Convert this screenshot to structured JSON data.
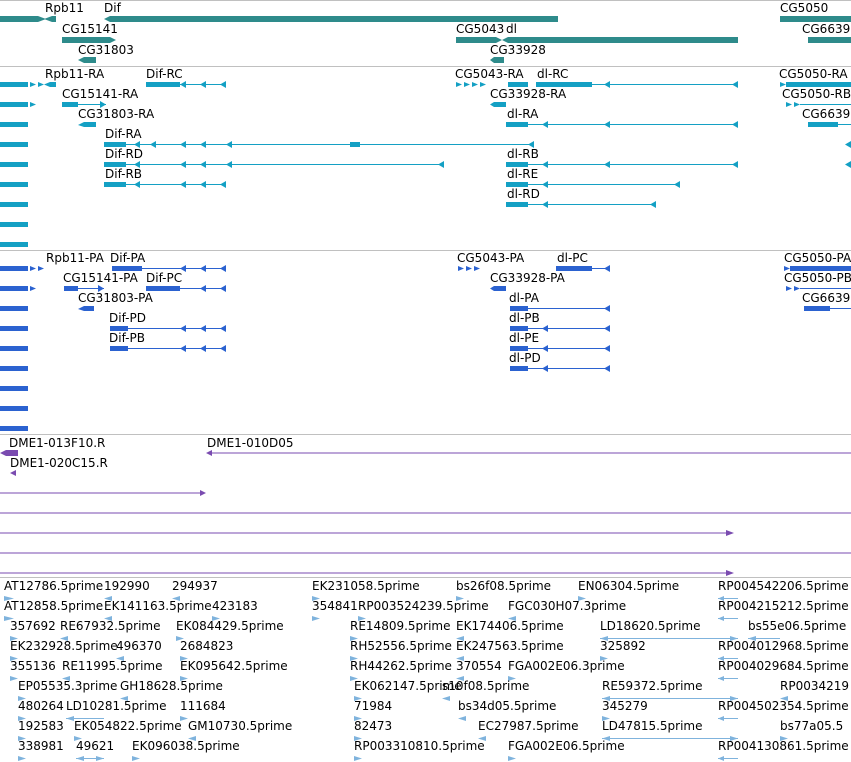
{
  "colors": {
    "gene": "#2e8b8b",
    "rna": "#14a0c4",
    "cds": "#2b62d0",
    "oligo": "#7a4bb0",
    "est": "#7fb3dd",
    "divider": "#c0c0c0",
    "text": "#000000"
  },
  "icons": {
    "arrow_right": "arrow-right-icon",
    "arrow_left": "arrow-left-icon"
  },
  "gene_track": {
    "labels": [
      "Rpb11",
      "Dif",
      "CG15141",
      "CG31803",
      "CG5043",
      "dl",
      "CG33928",
      "CG5050",
      "CG6639"
    ]
  },
  "rna_track": {
    "labels": [
      "Rpb11-RA",
      "Dif-RC",
      "CG15141-RA",
      "CG31803-RA",
      "Dif-RA",
      "Dif-RD",
      "Dif-RB",
      "CG5043-RA",
      "dl-RC",
      "CG33928-RA",
      "dl-RA",
      "dl-RB",
      "dl-RE",
      "dl-RD",
      "CG5050-RA",
      "CG5050-RB",
      "CG6639"
    ]
  },
  "cds_track": {
    "labels": [
      "Rpb11-PA",
      "Dif-PA",
      "CG15141-PA",
      "Dif-PC",
      "CG31803-PA",
      "Dif-PD",
      "Dif-PB",
      "CG5043-PA",
      "dl-PC",
      "CG33928-PA",
      "dl-PA",
      "dl-PB",
      "dl-PE",
      "dl-PD",
      "CG5050-PA",
      "CG5050-PB",
      "CG6639"
    ]
  },
  "oligo_track": {
    "labels": [
      "DME1-013F10.R",
      "DME1-010D05",
      "DME1-020C15.R"
    ]
  },
  "est_track": {
    "labels": [
      "AT12786.5prime",
      "192990",
      "294937",
      "EK231058.5prime",
      "bs26f08.5prime",
      "EN06304.5prime",
      "RP004542206.5prime",
      "AT12858.5prime",
      "EK141163.5prime",
      "423183",
      "354841",
      "RP003524239.5prime",
      "FGC030H07.3prime",
      "RP004215212.5prime",
      "357692",
      "RE67932.5prime",
      "EK084429.5prime",
      "RE14809.5prime",
      "EK174406.5prime",
      "LD18620.5prime",
      "bs55e06.5prime",
      "EK232928.5prime",
      "496370",
      "2684823",
      "RH52556.5prime",
      "EK247563.5prime",
      "325892",
      "RP004012968.5prime",
      "355136",
      "RE11995.5prime",
      "EK095642.5prime",
      "RH44262.5prime",
      "370554",
      "FGA002E06.3prime",
      "RP004029684.5prime",
      "EP05535.3prime",
      "GH18628.5prime",
      "EK062147.5prime",
      "s10f08.5prime",
      "RE59372.5prime",
      "RP0034219",
      "480264",
      "LD10281.5prime",
      "111684",
      "71984",
      "bs34d05.5prime",
      "345279",
      "RP004502354.5prime",
      "192583",
      "EK054822.5prime",
      "GM10730.5prime",
      "82473",
      "EC27987.5prime",
      "LD47815.5prime",
      "bs77a05.5",
      "338981",
      "49621",
      "EK096038.5prime",
      "RP003310810.5prime",
      "FGA002E06.5prime",
      "RP004130861.5prime"
    ]
  }
}
